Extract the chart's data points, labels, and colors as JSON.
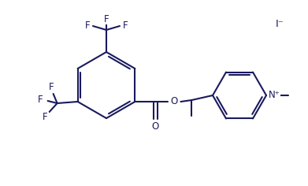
{
  "line_color": "#1a1a5e",
  "background_color": "#ffffff",
  "line_width": 1.5,
  "font_size": 8.5,
  "figsize": [
    3.91,
    2.36
  ],
  "dpi": 100,
  "labels": {
    "O_carbonyl": "O",
    "O_ester": "O",
    "N_plus": "N⁺",
    "iodide": "I⁻",
    "F": "F"
  }
}
